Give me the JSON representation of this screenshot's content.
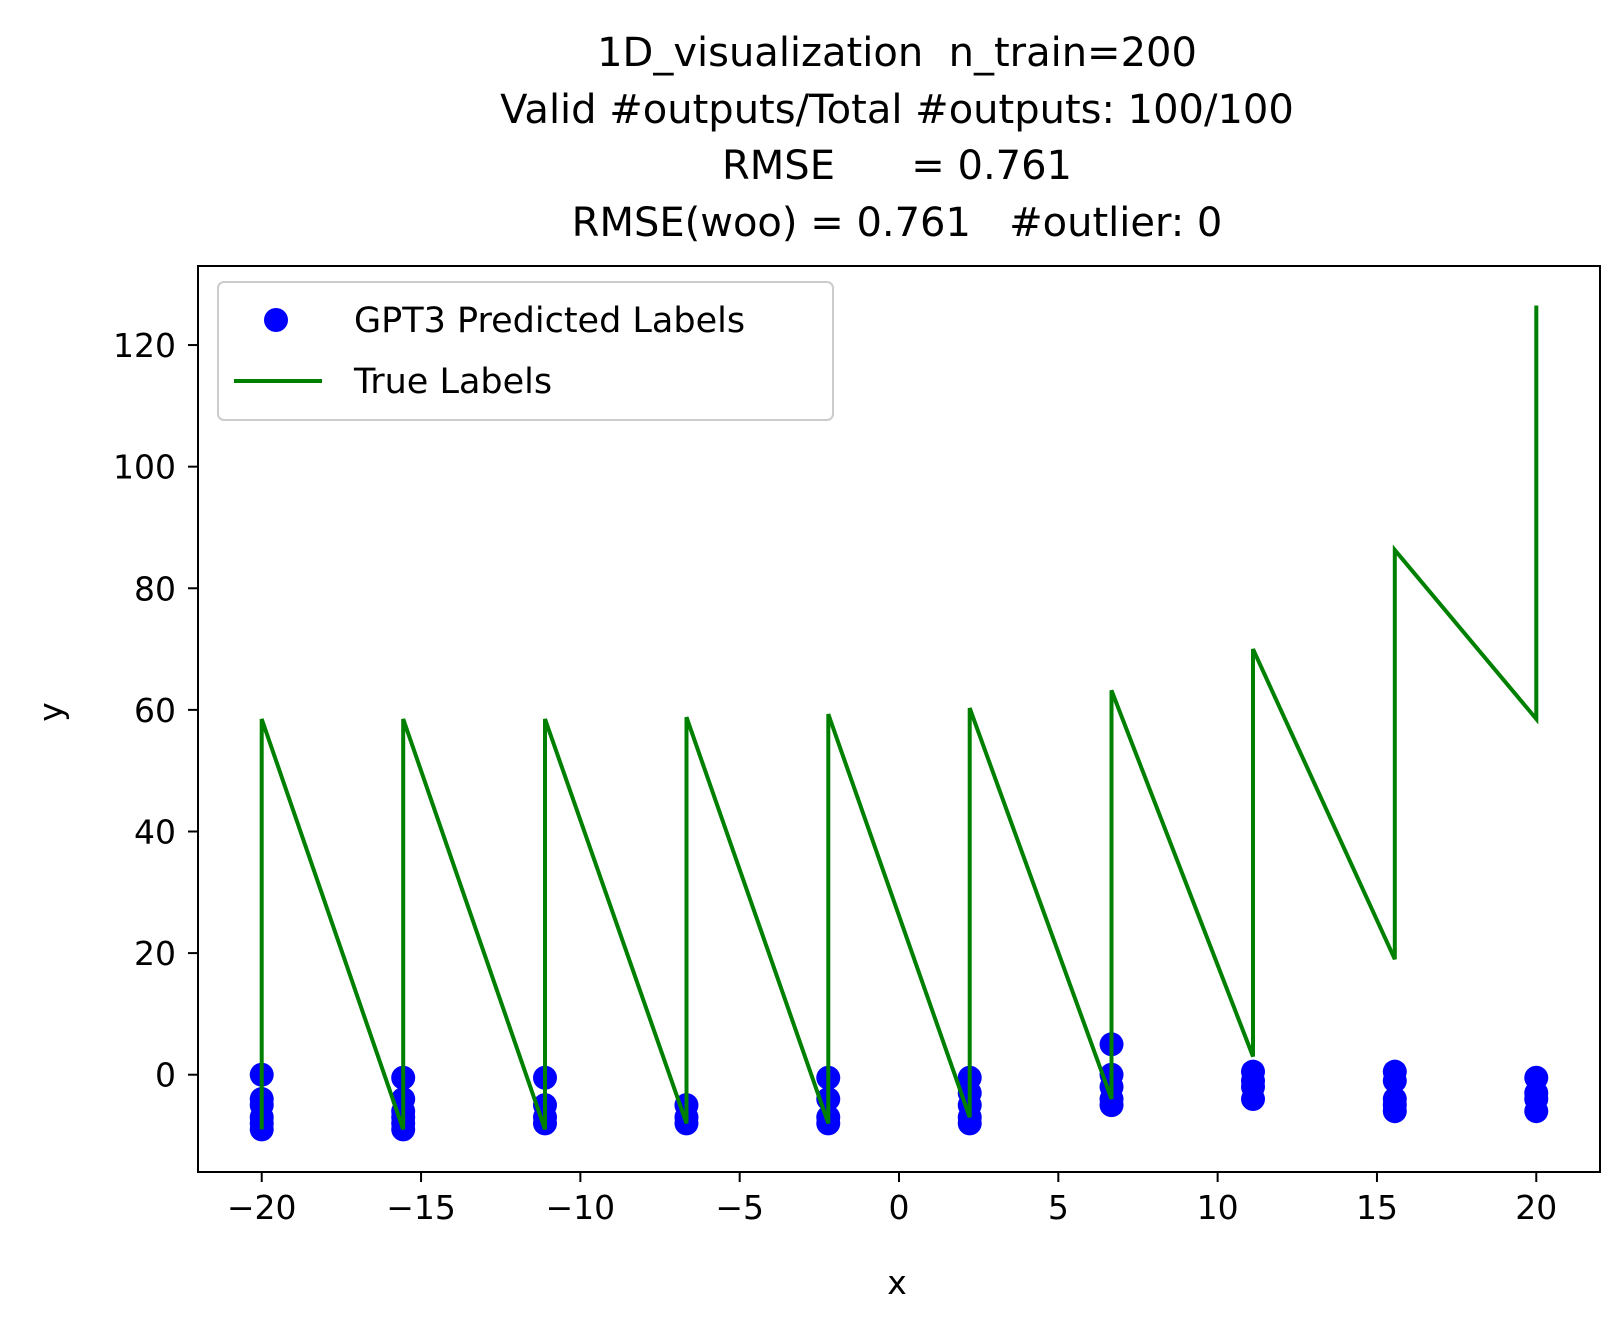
{
  "chart_data": {
    "type": "scatter",
    "title_lines": [
      "1D_visualization  n_train=200",
      "Valid #outputs/Total #outputs: 100/100",
      "RMSE      = 0.761",
      "RMSE(woo) = 0.761   #outlier: 0"
    ],
    "xlabel": "x",
    "ylabel": "y",
    "xlim": [
      -22,
      22
    ],
    "ylim": [
      -16,
      133
    ],
    "xticks": [
      -20,
      -15,
      -10,
      -5,
      0,
      5,
      10,
      15,
      20
    ],
    "xtick_labels": [
      "−20",
      "−15",
      "−10",
      "−5",
      "0",
      "5",
      "10",
      "15",
      "20"
    ],
    "yticks": [
      0,
      20,
      40,
      60,
      80,
      100,
      120
    ],
    "ytick_labels": [
      "0",
      "20",
      "40",
      "60",
      "80",
      "100",
      "120"
    ],
    "grid": false,
    "legend_position": "upper left",
    "series": [
      {
        "name": "GPT3 Predicted Labels",
        "kind": "scatter",
        "color": "#0000ff",
        "points": [
          [
            -20,
            0
          ],
          [
            -20,
            -4
          ],
          [
            -20,
            -5
          ],
          [
            -20,
            -7
          ],
          [
            -20,
            -8
          ],
          [
            -20,
            -9
          ],
          [
            -15.56,
            -0.5
          ],
          [
            -15.56,
            -4
          ],
          [
            -15.56,
            -6
          ],
          [
            -15.56,
            -7
          ],
          [
            -15.56,
            -8
          ],
          [
            -15.56,
            -9
          ],
          [
            -11.11,
            -0.5
          ],
          [
            -11.11,
            -5
          ],
          [
            -11.11,
            -7
          ],
          [
            -11.11,
            -8
          ],
          [
            -6.67,
            -5
          ],
          [
            -6.67,
            -7
          ],
          [
            -6.67,
            -8
          ],
          [
            -2.22,
            -0.5
          ],
          [
            -2.22,
            -4
          ],
          [
            -2.22,
            -7
          ],
          [
            -2.22,
            -8
          ],
          [
            2.22,
            -0.5
          ],
          [
            2.22,
            -3
          ],
          [
            2.22,
            -5
          ],
          [
            2.22,
            -7
          ],
          [
            2.22,
            -8
          ],
          [
            6.67,
            5
          ],
          [
            6.67,
            0
          ],
          [
            6.67,
            -2
          ],
          [
            6.67,
            -4
          ],
          [
            6.67,
            -5
          ],
          [
            11.11,
            0.5
          ],
          [
            11.11,
            -1
          ],
          [
            11.11,
            -2
          ],
          [
            11.11,
            -4
          ],
          [
            15.56,
            0.5
          ],
          [
            15.56,
            -1
          ],
          [
            15.56,
            -4
          ],
          [
            15.56,
            -5
          ],
          [
            15.56,
            -6
          ],
          [
            20,
            -0.5
          ],
          [
            20,
            -3
          ],
          [
            20,
            -4
          ],
          [
            20,
            -6
          ]
        ]
      },
      {
        "name": "True Labels",
        "kind": "line",
        "color": "#008000",
        "points": [
          [
            -20,
            -9
          ],
          [
            -20,
            58.5
          ],
          [
            -15.56,
            -9
          ],
          [
            -15.56,
            58.5
          ],
          [
            -11.11,
            -9
          ],
          [
            -11.11,
            58.5
          ],
          [
            -6.67,
            -8
          ],
          [
            -6.67,
            58.8
          ],
          [
            -2.22,
            -8
          ],
          [
            -2.22,
            59.3
          ],
          [
            2.22,
            -7
          ],
          [
            2.22,
            60.3
          ],
          [
            6.67,
            -4
          ],
          [
            6.67,
            63.2
          ],
          [
            11.11,
            3
          ],
          [
            11.11,
            70
          ],
          [
            15.56,
            19
          ],
          [
            15.56,
            86.3
          ],
          [
            20,
            58.5
          ],
          [
            20,
            126.5
          ]
        ]
      }
    ]
  }
}
